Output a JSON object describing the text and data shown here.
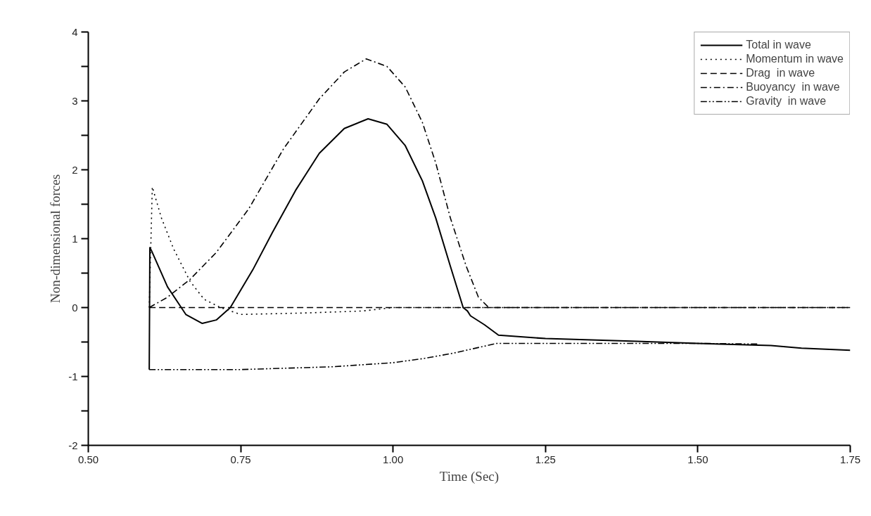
{
  "chart_data": {
    "type": "line",
    "xlabel": "Time (Sec)",
    "ylabel": "Non-dimensional forces",
    "xlim": [
      0.5,
      1.75
    ],
    "ylim": [
      -2,
      4
    ],
    "xticks": [
      {
        "value": 0.5,
        "label": "0.50"
      },
      {
        "value": 0.75,
        "label": "0.75"
      },
      {
        "value": 1.0,
        "label": "1.00"
      },
      {
        "value": 1.25,
        "label": "1.25"
      },
      {
        "value": 1.5,
        "label": "1.50"
      },
      {
        "value": 1.75,
        "label": "1.75"
      }
    ],
    "yticks": [
      -2,
      {
        "value": -1.5,
        "label": null
      },
      -1,
      {
        "value": -0.5,
        "label": null
      },
      0,
      {
        "value": 0.5,
        "label": null
      },
      1,
      {
        "value": 1.5,
        "label": null
      },
      2,
      {
        "value": 2.5,
        "label": null
      },
      3,
      {
        "value": 3.5,
        "label": null
      },
      4
    ],
    "grid": false,
    "legend": "top right",
    "marker": "none",
    "series": [
      {
        "name": "Total in wave",
        "color": "#000000",
        "line_style": "solid",
        "x": [
          0.6,
          0.601,
          0.604,
          0.63,
          0.66,
          0.687,
          0.71,
          0.733,
          0.77,
          0.802,
          0.84,
          0.879,
          0.92,
          0.959,
          0.99,
          1.02,
          1.048,
          1.07,
          1.094,
          1.115,
          1.122,
          1.127,
          1.15,
          1.173,
          1.25,
          1.4,
          1.5,
          1.62,
          1.67,
          1.75
        ],
        "values": [
          -0.9,
          0.87,
          0.82,
          0.3,
          -0.1,
          -0.23,
          -0.18,
          0.0,
          0.55,
          1.09,
          1.7,
          2.24,
          2.6,
          2.74,
          2.66,
          2.35,
          1.84,
          1.3,
          0.6,
          0.0,
          -0.05,
          -0.12,
          -0.25,
          -0.4,
          -0.45,
          -0.49,
          -0.52,
          -0.55,
          -0.59,
          -0.62
        ]
      },
      {
        "name": "Momentum in wave",
        "color": "#000000",
        "line_style": "dotted",
        "x": [
          0.6,
          0.605,
          0.62,
          0.64,
          0.667,
          0.69,
          0.717,
          0.75,
          0.85,
          0.95,
          1.0,
          1.1,
          1.75
        ],
        "values": [
          0.0,
          1.75,
          1.3,
          0.85,
          0.38,
          0.12,
          0.0,
          -0.1,
          -0.08,
          -0.05,
          0.0,
          0.0,
          0.0
        ]
      },
      {
        "name": "Drag  in wave",
        "color": "#000000",
        "line_style": "dashed",
        "x": [
          0.6,
          1.75
        ],
        "values": [
          0.0,
          0.0
        ]
      },
      {
        "name": "Buoyancy  in wave",
        "color": "#000000",
        "line_style": "dashdot",
        "x": [
          0.6,
          0.63,
          0.667,
          0.71,
          0.763,
          0.82,
          0.879,
          0.92,
          0.956,
          0.99,
          1.02,
          1.048,
          1.07,
          1.094,
          1.12,
          1.14,
          1.157,
          1.75
        ],
        "values": [
          0.0,
          0.15,
          0.41,
          0.8,
          1.43,
          2.3,
          3.03,
          3.42,
          3.61,
          3.5,
          3.2,
          2.69,
          2.1,
          1.3,
          0.6,
          0.15,
          0.0,
          0.0
        ]
      },
      {
        "name": "Gravity  in wave",
        "color": "#000000",
        "line_style": "dashdotdot",
        "x": [
          0.6,
          0.75,
          0.9,
          1.0,
          1.05,
          1.1,
          1.17,
          1.3,
          1.5,
          1.6
        ],
        "values": [
          -0.9,
          -0.9,
          -0.86,
          -0.8,
          -0.74,
          -0.66,
          -0.52,
          -0.52,
          -0.52,
          -0.53
        ]
      }
    ]
  }
}
